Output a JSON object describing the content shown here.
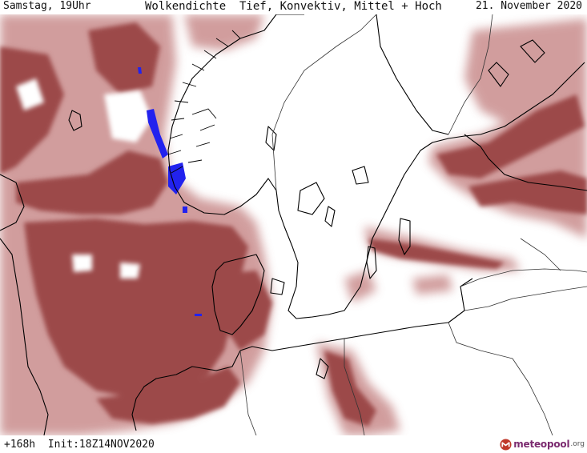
{
  "header": {
    "valid_time": "Samstag, 19Uhr",
    "title": "Wolkendichte  Tief, Konvektiv, Mittel + Hoch",
    "date": "21. November 2020"
  },
  "footer": {
    "run_info": "+168h  Init:18Z14NOV2020",
    "logo_main": "meteopool",
    "logo_tld": ".org"
  },
  "map": {
    "region": "North Sea / Scandinavia / Baltic",
    "layer": "cloud-density",
    "cloud_color": "#9c4a4a",
    "cloud_light_color": "#c98d8d",
    "precip_color": "#2222ee",
    "coastline_color": "#000000",
    "border_color": "#333333"
  }
}
